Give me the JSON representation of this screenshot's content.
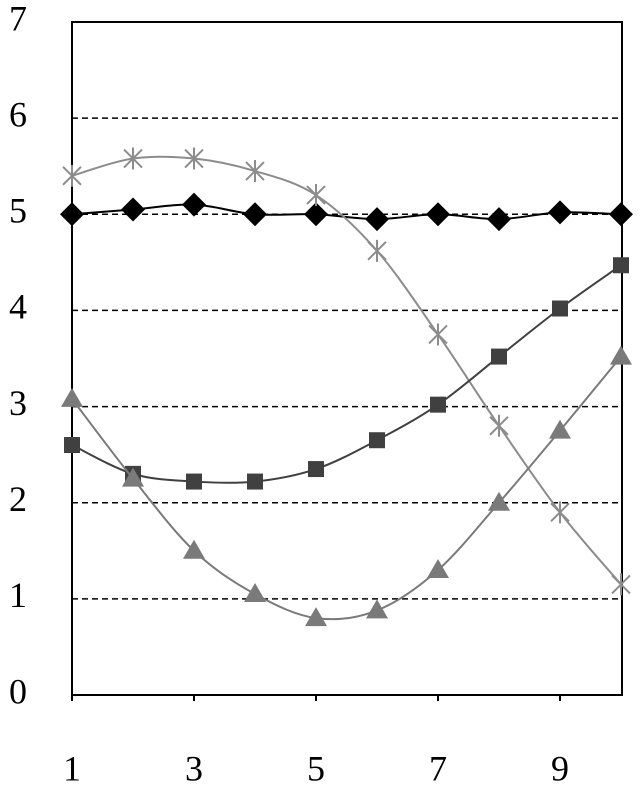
{
  "chart_data": {
    "type": "line",
    "x": [
      1,
      2,
      3,
      4,
      5,
      6,
      7,
      8,
      9,
      10
    ],
    "xlim": [
      1,
      10
    ],
    "xticks": [
      1,
      3,
      5,
      7,
      9
    ],
    "ylim": [
      0,
      7
    ],
    "yticks": [
      0,
      1,
      2,
      3,
      4,
      5,
      6,
      7
    ],
    "grid": true,
    "grid_style": "dashed",
    "smooth": true,
    "series": [
      {
        "color": "#000000",
        "marker": "diamond",
        "values": [
          5.0,
          5.05,
          5.1,
          5.0,
          5.0,
          4.95,
          5.0,
          4.95,
          5.02,
          5.0
        ]
      },
      {
        "color": "#8c8c8c",
        "marker": "star",
        "values": [
          5.4,
          5.58,
          5.58,
          5.45,
          5.2,
          4.62,
          3.75,
          2.8,
          1.9,
          1.15
        ]
      },
      {
        "color": "#404040",
        "marker": "square",
        "values": [
          2.6,
          2.3,
          2.22,
          2.22,
          2.35,
          2.65,
          3.02,
          3.52,
          4.02,
          4.47
        ]
      },
      {
        "color": "#7a7a7a",
        "marker": "triangle",
        "values": [
          3.08,
          2.25,
          1.5,
          1.05,
          0.8,
          0.88,
          1.3,
          2.0,
          2.75,
          3.52
        ]
      }
    ]
  }
}
